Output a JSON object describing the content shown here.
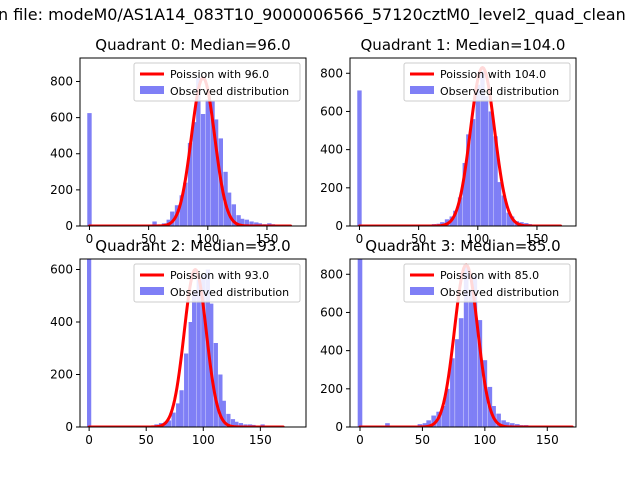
{
  "figure": {
    "suptitle": "n file: modeM0/AS1A14_083T10_9000006566_57120cztM0_level2_quad_clean"
  },
  "colors": {
    "hist": "#7f7ff6",
    "poisson": "#ff0000",
    "axis": "#000000",
    "background": "#ffffff"
  },
  "chart_data": [
    {
      "type": "bar",
      "title": "Quadrant 0: Median=96.0",
      "xlim": [
        -8,
        183
      ],
      "ylim": [
        0,
        930
      ],
      "xticks": [
        0,
        50,
        100,
        150
      ],
      "yticks": [
        0,
        200,
        400,
        600,
        800
      ],
      "legend": [
        "Poission with 96.0",
        "Observed distribution"
      ],
      "legend_position": "upper-right",
      "median": 96,
      "peak": 820,
      "bin_width": 3.7,
      "hist_x": [
        0,
        55,
        59,
        63,
        67,
        70,
        74,
        78,
        81,
        85,
        89,
        92,
        96,
        100,
        104,
        107,
        111,
        115,
        118,
        122,
        126,
        129,
        133,
        137,
        141,
        144,
        148,
        152,
        155,
        159,
        163
      ],
      "hist_y": [
        625,
        25,
        5,
        15,
        35,
        80,
        115,
        170,
        240,
        460,
        575,
        820,
        620,
        700,
        690,
        590,
        485,
        300,
        185,
        120,
        60,
        40,
        35,
        25,
        20,
        15,
        10,
        15,
        10,
        5,
        3
      ],
      "series": [
        {
          "name": "Poission with 96.0",
          "kind": "line",
          "peak": 820
        },
        {
          "name": "Observed distribution",
          "kind": "histogram"
        }
      ]
    },
    {
      "type": "bar",
      "title": "Quadrant 1: Median=104.0",
      "xlim": [
        -8,
        183
      ],
      "ylim": [
        0,
        880
      ],
      "xticks": [
        0,
        50,
        100,
        150
      ],
      "yticks": [
        0,
        200,
        400,
        600,
        800
      ],
      "legend": [
        "Poission with 104.0",
        "Observed distribution"
      ],
      "legend_position": "upper-right",
      "median": 104,
      "peak": 830,
      "bin_width": 3.7,
      "hist_x": [
        0,
        59,
        63,
        67,
        70,
        74,
        78,
        81,
        85,
        89,
        92,
        96,
        100,
        104,
        107,
        111,
        115,
        118,
        122,
        126,
        129,
        133,
        137,
        141,
        144
      ],
      "hist_y": [
        710,
        5,
        10,
        12,
        20,
        35,
        50,
        80,
        150,
        330,
        480,
        560,
        740,
        810,
        680,
        600,
        470,
        230,
        160,
        70,
        50,
        25,
        20,
        15,
        10
      ],
      "series": [
        {
          "name": "Poission with 104.0",
          "kind": "line",
          "peak": 830
        },
        {
          "name": "Observed distribution",
          "kind": "histogram"
        }
      ]
    },
    {
      "type": "bar",
      "title": "Quadrant 2: Median=93.0",
      "xlim": [
        -8,
        190
      ],
      "ylim": [
        0,
        640
      ],
      "xticks": [
        0,
        50,
        100,
        150
      ],
      "yticks": [
        0,
        200,
        400,
        600
      ],
      "legend": [
        "Poission with 93.0",
        "Observed distribution"
      ],
      "legend_position": "upper-right",
      "median": 93,
      "peak": 600,
      "bin_width": 3.7,
      "hist_x": [
        0,
        55,
        59,
        63,
        67,
        70,
        74,
        78,
        81,
        85,
        89,
        92,
        96,
        100,
        104,
        107,
        111,
        115,
        118,
        122,
        126,
        129,
        133,
        137,
        141,
        144,
        148,
        152,
        155
      ],
      "hist_y": [
        640,
        5,
        10,
        15,
        20,
        25,
        55,
        90,
        140,
        280,
        400,
        520,
        560,
        580,
        600,
        470,
        320,
        200,
        100,
        50,
        30,
        20,
        15,
        10,
        10,
        8,
        5,
        10,
        5
      ],
      "series": [
        {
          "name": "Poission with 93.0",
          "kind": "line",
          "peak": 600
        },
        {
          "name": "Observed distribution",
          "kind": "histogram"
        }
      ]
    },
    {
      "type": "bar",
      "title": "Quadrant 3: Median=85.0",
      "xlim": [
        -8,
        173
      ],
      "ylim": [
        0,
        880
      ],
      "xticks": [
        0,
        50,
        100,
        150
      ],
      "yticks": [
        0,
        200,
        400,
        600,
        800
      ],
      "legend": [
        "Poission with 85.0",
        "Observed distribution"
      ],
      "legend_position": "upper-right",
      "median": 85,
      "peak": 850,
      "bin_width": 3.7,
      "hist_x": [
        0,
        22,
        48,
        52,
        55,
        59,
        63,
        67,
        70,
        74,
        78,
        81,
        85,
        89,
        92,
        96,
        100,
        104,
        107,
        111,
        115,
        118,
        122,
        126,
        129,
        133,
        137
      ],
      "hist_y": [
        880,
        20,
        15,
        20,
        35,
        60,
        80,
        110,
        200,
        360,
        460,
        570,
        850,
        720,
        790,
        560,
        350,
        210,
        110,
        70,
        35,
        25,
        20,
        15,
        10,
        10,
        5
      ],
      "series": [
        {
          "name": "Poission with 85.0",
          "kind": "line",
          "peak": 850
        },
        {
          "name": "Observed distribution",
          "kind": "histogram"
        }
      ]
    }
  ]
}
